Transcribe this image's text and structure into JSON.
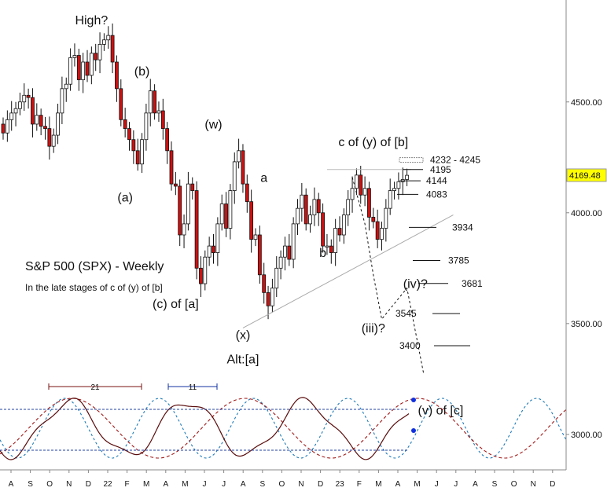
{
  "chart_data": {
    "type": "candlestick",
    "title": "S&P 500 (SPX) - Weekly",
    "subtitle": "In the late stages of c of (y) of [b]",
    "y_axis": {
      "ticks": [
        3000,
        3500,
        4000,
        4500
      ],
      "tick_labels": [
        "3000.00",
        "3500.00",
        "4000.00",
        "4500.00"
      ],
      "range": [
        2840,
        4960
      ],
      "position": "right"
    },
    "last_price": {
      "value": 4169.48,
      "label": "4169.48",
      "color": "#ffff00"
    },
    "x_axis": {
      "labels": [
        "A",
        "S",
        "O",
        "N",
        "D",
        "22",
        "F",
        "M",
        "A",
        "M",
        "J",
        "J",
        "A",
        "S",
        "O",
        "N",
        "D",
        "23",
        "F",
        "M",
        "A",
        "M",
        "J",
        "J",
        "A",
        "S",
        "O",
        "N",
        "D"
      ]
    },
    "candles_close": [
      4360,
      4420,
      4450,
      4470,
      4500,
      4530,
      4520,
      4400,
      4440,
      4390,
      4380,
      4300,
      4350,
      4450,
      4560,
      4580,
      4700,
      4710,
      4600,
      4680,
      4620,
      4720,
      4690,
      4760,
      4780,
      4800,
      4680,
      4560,
      4420,
      4380,
      4330,
      4280,
      4220,
      4330,
      4450,
      4550,
      4450,
      4460,
      4380,
      4280,
      4130,
      4120,
      3900,
      3950,
      4130,
      4100,
      3750,
      3680,
      3800,
      3850,
      3820,
      3950,
      4040,
      3930,
      4100,
      4230,
      4280,
      4130,
      4050,
      3880,
      3900,
      3720,
      3640,
      3580,
      3660,
      3750,
      3800,
      3850,
      3790,
      3950,
      4020,
      4080,
      3950,
      3990,
      4060,
      4000,
      3850,
      3850,
      3820,
      3930,
      3900,
      3990,
      4060,
      4110,
      4170,
      4080,
      4110,
      3980,
      3960,
      3880,
      3930,
      4020,
      4100,
      4110,
      4140,
      4150,
      4169
    ],
    "candles_open": [
      4400,
      4360,
      4420,
      4450,
      4470,
      4500,
      4530,
      4520,
      4400,
      4440,
      4390,
      4380,
      4300,
      4350,
      4450,
      4560,
      4580,
      4700,
      4710,
      4600,
      4680,
      4620,
      4720,
      4690,
      4760,
      4780,
      4800,
      4680,
      4560,
      4420,
      4380,
      4330,
      4280,
      4220,
      4330,
      4450,
      4550,
      4450,
      4460,
      4380,
      4280,
      4130,
      4120,
      3900,
      3950,
      4130,
      4100,
      3750,
      3680,
      3800,
      3850,
      3820,
      3950,
      4040,
      3930,
      4100,
      4230,
      4280,
      4130,
      4050,
      3880,
      3900,
      3720,
      3640,
      3580,
      3660,
      3750,
      3800,
      3850,
      3790,
      3950,
      4020,
      4080,
      3950,
      3990,
      4060,
      4000,
      3850,
      3850,
      3820,
      3930,
      3900,
      3990,
      4060,
      4110,
      4170,
      4080,
      4110,
      3980,
      3960,
      3880,
      3930,
      4020,
      4100,
      4110,
      4140,
      4150
    ],
    "wave_labels": [
      {
        "text": "High?",
        "x": 21,
        "y": 4850
      },
      {
        "text": "(b)",
        "x": 33,
        "y": 4620
      },
      {
        "text": "(a)",
        "x": 29,
        "y": 4050
      },
      {
        "text": "(w)",
        "x": 50,
        "y": 4380
      },
      {
        "text": "(c) of [a]",
        "x": 41,
        "y": 3570
      },
      {
        "text": "(x)",
        "x": 57,
        "y": 3430
      },
      {
        "text": "Alt:[a]",
        "x": 57,
        "y": 3320
      },
      {
        "text": "a",
        "x": 62,
        "y": 4140
      },
      {
        "text": "b",
        "x": 76,
        "y": 3800
      },
      {
        "text": "c of (y) of [b]",
        "x": 88,
        "y": 4300
      },
      {
        "text": "(iii)?",
        "x": 88,
        "y": 3460
      },
      {
        "text": "(iv)?",
        "x": 98,
        "y": 3660
      },
      {
        "text": "(v) of [c]",
        "x": 104,
        "y": 3090
      }
    ],
    "fib_levels": [
      {
        "label": "4232 - 4245",
        "value": 4238
      },
      {
        "label": "4195",
        "value": 4195
      },
      {
        "label": "4144",
        "value": 4144
      },
      {
        "label": "4083",
        "value": 4083
      },
      {
        "label": "3934",
        "value": 3934
      },
      {
        "label": "3785",
        "value": 3785
      },
      {
        "label": "3681",
        "value": 3681
      },
      {
        "label": "3545",
        "value": 3545
      },
      {
        "label": "3400",
        "value": 3400
      }
    ],
    "projection_path": [
      [
        83,
        4160
      ],
      [
        86,
        3950
      ],
      [
        88,
        3720
      ],
      [
        90,
        3520
      ],
      [
        96,
        3660
      ],
      [
        100,
        3270
      ]
    ],
    "cycle_labels": [
      {
        "label": "21",
        "color": "#7a1010"
      },
      {
        "label": "11",
        "color": "#1030a0"
      }
    ],
    "grid": false
  }
}
